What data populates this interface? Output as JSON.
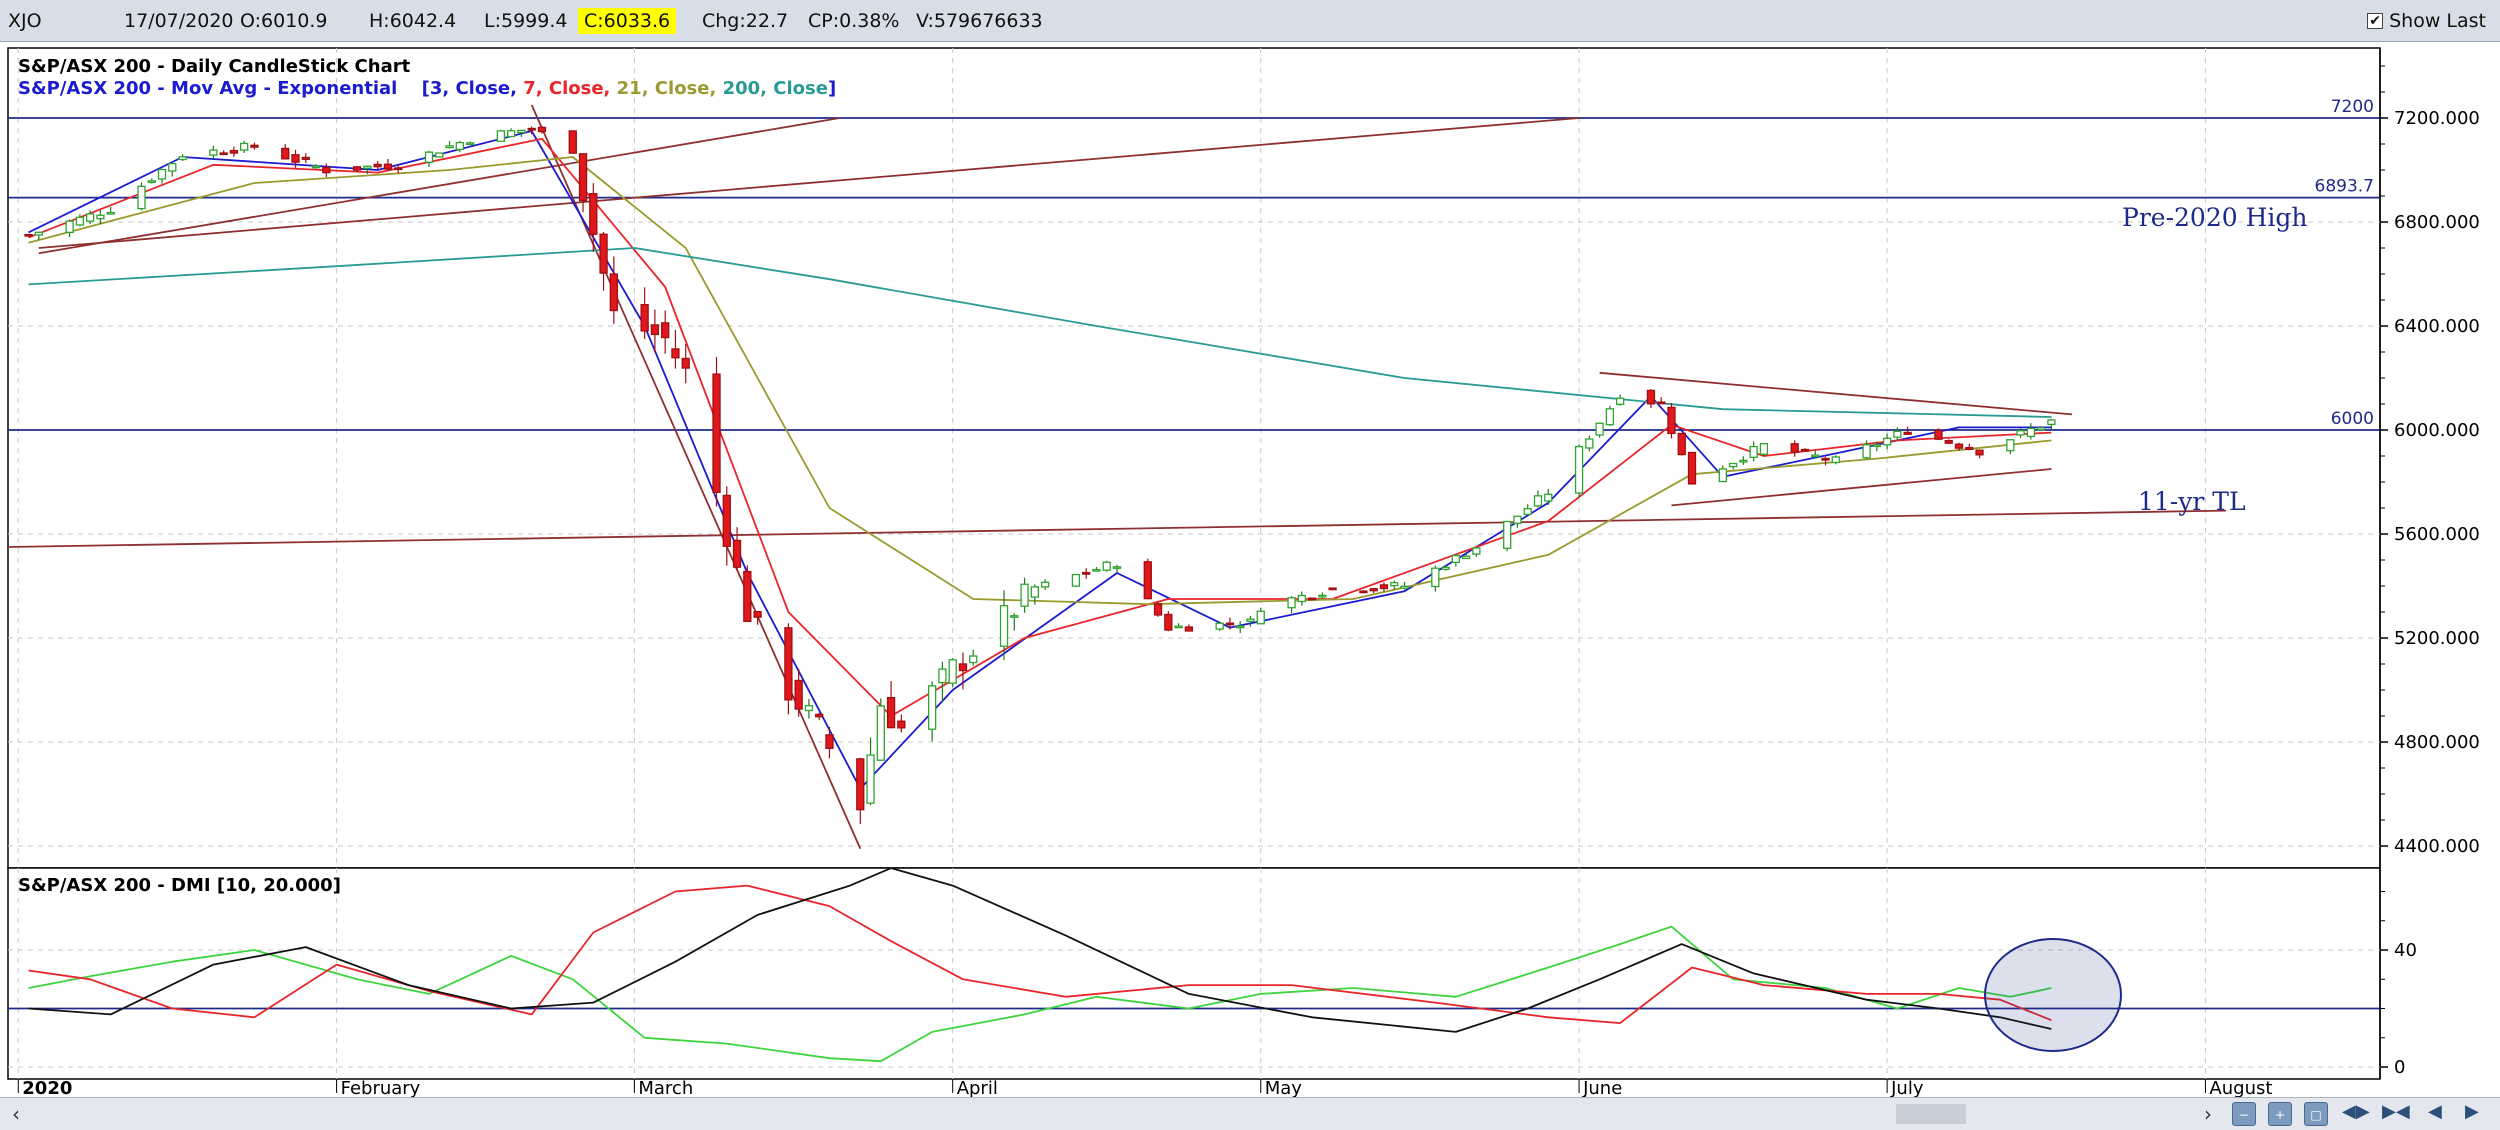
{
  "topbar": {
    "symbol": "XJO",
    "date": "17/07/2020",
    "open": "O:6010.9",
    "high": "H:6042.4",
    "low": "L:5999.4",
    "close": "C:6033.6",
    "change": "Chg:22.7",
    "change_pct": "CP:0.38%",
    "volume": "V:579676633",
    "show_last_label": "Show Last",
    "show_last_checked": "✔"
  },
  "colors": {
    "price_up": "#2fa52f",
    "price_down": "#e0181b",
    "ema3": "#1b1bd0",
    "ema7": "#e8252a",
    "ema21": "#9a9a30",
    "ema200": "#2a9a94",
    "trendline": "#8e3030",
    "hline": "#1e2a8a",
    "di_plus": "#3ed43e",
    "di_minus": "#e8252a",
    "adx": "#111111"
  },
  "chart_data": [
    {
      "type": "candlestick",
      "title": "S&P/ASX 200 - Daily CandleStick Chart",
      "subtitle_prefix": "S&P/ASX 200 - Mov Avg - Exponential",
      "ma_params": [
        "[3, Close, ",
        "7, Close, ",
        "21, Close, ",
        "200, Close",
        "]"
      ],
      "ylim": [
        4300,
        7450
      ],
      "yticks": [
        4400,
        4800,
        5200,
        5600,
        6000,
        6400,
        6800,
        7200
      ],
      "ytick_labels": [
        "4400.000",
        "4800.000",
        "5200.000",
        "5600.000",
        "6000.000",
        "6400.000",
        "6800.000",
        "7200.000"
      ],
      "horizontal_lines": [
        {
          "value": 7200,
          "label": "7200"
        },
        {
          "value": 6893.7,
          "label": "6893.7"
        },
        {
          "value": 6000,
          "label": "6000"
        }
      ],
      "annotations": [
        "Pre-2020 High",
        "11-yr TL"
      ],
      "x_range": [
        "2019-12-31",
        "2020-08-18"
      ],
      "month_labels": [
        {
          "date": "2020-01-01",
          "label": "2020"
        },
        {
          "date": "2020-02-01",
          "label": "February"
        },
        {
          "date": "2020-03-01",
          "label": "March"
        },
        {
          "date": "2020-04-01",
          "label": "April"
        },
        {
          "date": "2020-05-01",
          "label": "May"
        },
        {
          "date": "2020-06-01",
          "label": "June"
        },
        {
          "date": "2020-07-01",
          "label": "July"
        },
        {
          "date": "2020-08-01",
          "label": "August"
        }
      ],
      "close_path": [
        [
          "2020-01-02",
          6750
        ],
        [
          "2020-01-10",
          6850
        ],
        [
          "2020-01-17",
          7060
        ],
        [
          "2020-01-24",
          7090
        ],
        [
          "2020-01-31",
          7000
        ],
        [
          "2020-02-07",
          7020
        ],
        [
          "2020-02-14",
          7120
        ],
        [
          "2020-02-20",
          7160
        ],
        [
          "2020-02-24",
          7080
        ],
        [
          "2020-02-28",
          6440
        ],
        [
          "2020-03-04",
          6350
        ],
        [
          "2020-03-06",
          6220
        ],
        [
          "2020-03-09",
          5760
        ],
        [
          "2020-03-12",
          5300
        ],
        [
          "2020-03-16",
          5000
        ],
        [
          "2020-03-19",
          4850
        ],
        [
          "2020-03-23",
          4560
        ],
        [
          "2020-03-25",
          4950
        ],
        [
          "2020-03-27",
          4850
        ],
        [
          "2020-04-01",
          5080
        ],
        [
          "2020-04-09",
          5390
        ],
        [
          "2020-04-17",
          5490
        ],
        [
          "2020-04-22",
          5240
        ],
        [
          "2020-04-30",
          5260
        ],
        [
          "2020-05-01",
          5320
        ],
        [
          "2020-05-08",
          5390
        ],
        [
          "2020-05-15",
          5400
        ],
        [
          "2020-05-22",
          5550
        ],
        [
          "2020-05-29",
          5760
        ],
        [
          "2020-06-05",
          6140
        ],
        [
          "2020-06-09",
          6100
        ],
        [
          "2020-06-12",
          5800
        ],
        [
          "2020-06-19",
          5940
        ],
        [
          "2020-06-26",
          5880
        ],
        [
          "2020-07-03",
          6000
        ],
        [
          "2020-07-10",
          5920
        ],
        [
          "2020-07-17",
          6033.6
        ]
      ],
      "series": [
        {
          "name": "3, Close",
          "values": [
            [
              "2020-01-02",
              6760
            ],
            [
              "2020-01-17",
              7050
            ],
            [
              "2020-02-05",
              7000
            ],
            [
              "2020-02-20",
              7150
            ],
            [
              "2020-03-02",
              6400
            ],
            [
              "2020-03-12",
              5450
            ],
            [
              "2020-03-23",
              4620
            ],
            [
              "2020-04-01",
              5000
            ],
            [
              "2020-04-17",
              5450
            ],
            [
              "2020-04-28",
              5240
            ],
            [
              "2020-05-15",
              5380
            ],
            [
              "2020-05-29",
              5720
            ],
            [
              "2020-06-08",
              6130
            ],
            [
              "2020-06-15",
              5820
            ],
            [
              "2020-06-26",
              5910
            ],
            [
              "2020-07-08",
              6010
            ],
            [
              "2020-07-17",
              6010
            ]
          ]
        },
        {
          "name": "7, Close",
          "values": [
            [
              "2020-01-02",
              6740
            ],
            [
              "2020-01-20",
              7020
            ],
            [
              "2020-02-05",
              6990
            ],
            [
              "2020-02-21",
              7120
            ],
            [
              "2020-03-04",
              6550
            ],
            [
              "2020-03-16",
              5300
            ],
            [
              "2020-03-26",
              4900
            ],
            [
              "2020-04-08",
              5200
            ],
            [
              "2020-04-22",
              5350
            ],
            [
              "2020-05-08",
              5350
            ],
            [
              "2020-05-29",
              5650
            ],
            [
              "2020-06-10",
              6020
            ],
            [
              "2020-06-19",
              5900
            ],
            [
              "2020-07-02",
              5960
            ],
            [
              "2020-07-17",
              5990
            ]
          ]
        },
        {
          "name": "21, Close",
          "values": [
            [
              "2020-01-02",
              6720
            ],
            [
              "2020-01-24",
              6950
            ],
            [
              "2020-02-12",
              7000
            ],
            [
              "2020-02-24",
              7050
            ],
            [
              "2020-03-06",
              6700
            ],
            [
              "2020-03-20",
              5700
            ],
            [
              "2020-04-03",
              5350
            ],
            [
              "2020-04-20",
              5330
            ],
            [
              "2020-05-10",
              5350
            ],
            [
              "2020-05-29",
              5520
            ],
            [
              "2020-06-12",
              5830
            ],
            [
              "2020-06-30",
              5890
            ],
            [
              "2020-07-17",
              5960
            ]
          ]
        },
        {
          "name": "200, Close",
          "values": [
            [
              "2020-01-02",
              6560
            ],
            [
              "2020-02-01",
              6630
            ],
            [
              "2020-03-01",
              6700
            ],
            [
              "2020-03-20",
              6580
            ],
            [
              "2020-04-15",
              6400
            ],
            [
              "2020-05-15",
              6200
            ],
            [
              "2020-06-15",
              6080
            ],
            [
              "2020-07-17",
              6050
            ]
          ]
        }
      ]
    },
    {
      "type": "line",
      "title": "S&P/ASX 200 - DMI [10, 20.000]",
      "ylim": [
        -5,
        68
      ],
      "yticks": [
        0,
        40
      ],
      "ytick_labels": [
        "0",
        "40"
      ],
      "reference_line": 20,
      "series": [
        {
          "values": [
            [
              "2020-01-02",
              27
            ],
            [
              "2020-01-08",
              31
            ],
            [
              "2020-01-16",
              36
            ],
            [
              "2020-01-24",
              40
            ],
            [
              "2020-02-03",
              30
            ],
            [
              "2020-02-10",
              25
            ],
            [
              "2020-02-18",
              38
            ],
            [
              "2020-02-24",
              30
            ],
            [
              "2020-03-02",
              10
            ],
            [
              "2020-03-10",
              8
            ],
            [
              "2020-03-20",
              3
            ],
            [
              "2020-03-25",
              2
            ],
            [
              "2020-03-30",
              12
            ],
            [
              "2020-04-08",
              18
            ],
            [
              "2020-04-15",
              24
            ],
            [
              "2020-04-24",
              20
            ],
            [
              "2020-05-01",
              25
            ],
            [
              "2020-05-10",
              27
            ],
            [
              "2020-05-20",
              24
            ],
            [
              "2020-05-29",
              34
            ],
            [
              "2020-06-05",
              42
            ],
            [
              "2020-06-10",
              48
            ],
            [
              "2020-06-16",
              30
            ],
            [
              "2020-06-25",
              27
            ],
            [
              "2020-07-02",
              20
            ],
            [
              "2020-07-08",
              27
            ],
            [
              "2020-07-13",
              24
            ],
            [
              "2020-07-17",
              27
            ]
          ]
        },
        {
          "values": [
            [
              "2020-01-02",
              33
            ],
            [
              "2020-01-08",
              30
            ],
            [
              "2020-01-16",
              20
            ],
            [
              "2020-01-24",
              17
            ],
            [
              "2020-02-01",
              35
            ],
            [
              "2020-02-10",
              26
            ],
            [
              "2020-02-20",
              18
            ],
            [
              "2020-02-26",
              46
            ],
            [
              "2020-03-05",
              60
            ],
            [
              "2020-03-12",
              62
            ],
            [
              "2020-03-20",
              55
            ],
            [
              "2020-03-26",
              43
            ],
            [
              "2020-04-02",
              30
            ],
            [
              "2020-04-12",
              24
            ],
            [
              "2020-04-24",
              28
            ],
            [
              "2020-05-04",
              28
            ],
            [
              "2020-05-18",
              22
            ],
            [
              "2020-05-29",
              17
            ],
            [
              "2020-06-05",
              15
            ],
            [
              "2020-06-12",
              34
            ],
            [
              "2020-06-19",
              28
            ],
            [
              "2020-06-29",
              25
            ],
            [
              "2020-07-06",
              25
            ],
            [
              "2020-07-12",
              23
            ],
            [
              "2020-07-17",
              16
            ]
          ]
        },
        {
          "values": [
            [
              "2020-01-02",
              20
            ],
            [
              "2020-01-10",
              18
            ],
            [
              "2020-01-20",
              35
            ],
            [
              "2020-01-29",
              41
            ],
            [
              "2020-02-08",
              28
            ],
            [
              "2020-02-18",
              20
            ],
            [
              "2020-02-26",
              22
            ],
            [
              "2020-03-05",
              36
            ],
            [
              "2020-03-13",
              52
            ],
            [
              "2020-03-22",
              62
            ],
            [
              "2020-03-26",
              68
            ],
            [
              "2020-04-01",
              62
            ],
            [
              "2020-04-12",
              45
            ],
            [
              "2020-04-24",
              25
            ],
            [
              "2020-05-06",
              17
            ],
            [
              "2020-05-20",
              12
            ],
            [
              "2020-05-27",
              20
            ],
            [
              "2020-06-03",
              30
            ],
            [
              "2020-06-11",
              42
            ],
            [
              "2020-06-18",
              32
            ],
            [
              "2020-06-29",
              23
            ],
            [
              "2020-07-06",
              20
            ],
            [
              "2020-07-12",
              17
            ],
            [
              "2020-07-17",
              13
            ]
          ]
        }
      ]
    }
  ]
}
